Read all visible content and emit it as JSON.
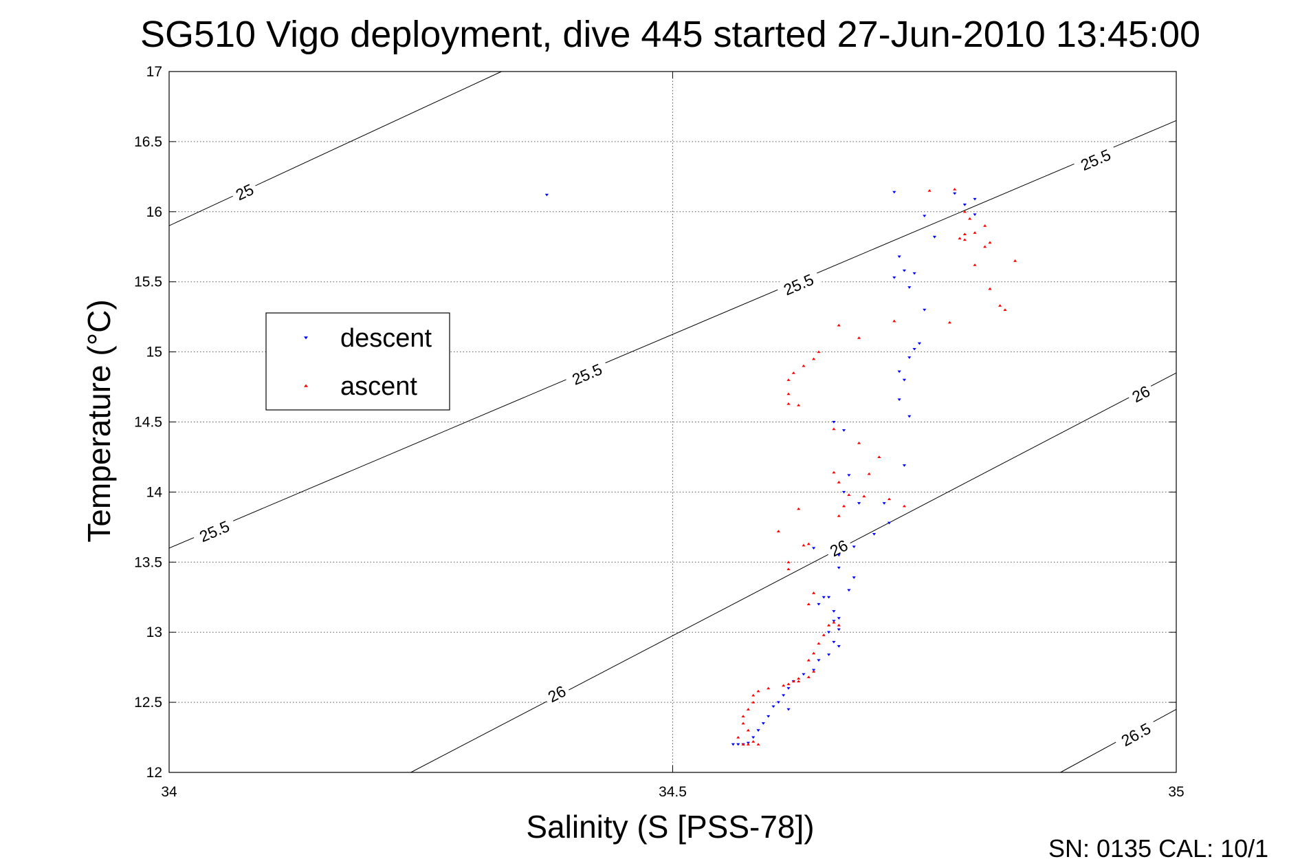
{
  "chart_data": {
    "type": "scatter",
    "title": "SG510 Vigo deployment, dive 445 started 27-Jun-2010 13:45:00",
    "xlabel": "Salinity (S [PSS-78])",
    "ylabel": "Temperature (°C)",
    "xlim": [
      34,
      35
    ],
    "ylim": [
      12,
      17
    ],
    "x_ticks": [
      "34",
      "34.5",
      "35"
    ],
    "y_ticks": [
      "12",
      "12.5",
      "13",
      "13.5",
      "14",
      "14.5",
      "15",
      "15.5",
      "16",
      "16.5",
      "17"
    ],
    "grid": true,
    "legend_position": "left",
    "footer": "SN: 0135  CAL: 10/1",
    "density_contours": [
      {
        "level": "25",
        "points": [
          [
            34.0,
            15.9
          ],
          [
            34.33,
            17.0
          ]
        ],
        "labels": [
          [
            34.075,
            16.14
          ]
        ]
      },
      {
        "level": "25.5",
        "points": [
          [
            34.0,
            13.6
          ],
          [
            35.0,
            16.65
          ]
        ],
        "labels": [
          [
            34.045,
            13.72
          ],
          [
            34.415,
            14.84
          ],
          [
            34.625,
            15.48
          ],
          [
            34.92,
            16.37
          ]
        ]
      },
      {
        "level": "26",
        "points": [
          [
            34.24,
            12.0
          ],
          [
            35.0,
            14.85
          ]
        ],
        "labels": [
          [
            34.385,
            12.56
          ],
          [
            34.665,
            13.6
          ],
          [
            34.965,
            14.7
          ]
        ]
      },
      {
        "level": "26.5",
        "points": [
          [
            34.885,
            12.0
          ],
          [
            35.0,
            12.45
          ]
        ],
        "labels": [
          [
            34.96,
            12.27
          ]
        ]
      }
    ],
    "series": [
      {
        "name": "descent",
        "color": "#0000ff",
        "marker": "triangle-down",
        "points": [
          [
            34.375,
            16.12
          ],
          [
            34.72,
            16.14
          ],
          [
            34.78,
            16.13
          ],
          [
            34.79,
            16.05
          ],
          [
            34.8,
            16.09
          ],
          [
            34.8,
            15.98
          ],
          [
            34.76,
            15.82
          ],
          [
            34.75,
            15.97
          ],
          [
            34.725,
            15.68
          ],
          [
            34.73,
            15.58
          ],
          [
            34.74,
            15.56
          ],
          [
            34.72,
            15.53
          ],
          [
            34.735,
            15.46
          ],
          [
            34.75,
            15.3
          ],
          [
            34.745,
            15.06
          ],
          [
            34.74,
            15.02
          ],
          [
            34.735,
            14.96
          ],
          [
            34.725,
            14.86
          ],
          [
            34.73,
            14.8
          ],
          [
            34.725,
            14.66
          ],
          [
            34.735,
            14.54
          ],
          [
            34.73,
            14.19
          ],
          [
            34.66,
            14.5
          ],
          [
            34.67,
            14.44
          ],
          [
            34.675,
            14.12
          ],
          [
            34.67,
            14.0
          ],
          [
            34.685,
            13.92
          ],
          [
            34.71,
            13.92
          ],
          [
            34.715,
            13.78
          ],
          [
            34.7,
            13.7
          ],
          [
            34.64,
            13.6
          ],
          [
            34.68,
            13.61
          ],
          [
            34.665,
            13.55
          ],
          [
            34.665,
            13.46
          ],
          [
            34.68,
            13.39
          ],
          [
            34.675,
            13.3
          ],
          [
            34.655,
            13.25
          ],
          [
            34.65,
            13.25
          ],
          [
            34.645,
            13.2
          ],
          [
            34.66,
            13.15
          ],
          [
            34.665,
            13.1
          ],
          [
            34.66,
            13.08
          ],
          [
            34.665,
            13.02
          ],
          [
            34.655,
            13.0
          ],
          [
            34.66,
            12.93
          ],
          [
            34.665,
            12.9
          ],
          [
            34.655,
            12.84
          ],
          [
            34.645,
            12.8
          ],
          [
            34.64,
            12.73
          ],
          [
            34.63,
            12.7
          ],
          [
            34.62,
            12.65
          ],
          [
            34.615,
            12.6
          ],
          [
            34.61,
            12.55
          ],
          [
            34.605,
            12.5
          ],
          [
            34.615,
            12.45
          ],
          [
            34.6,
            12.47
          ],
          [
            34.595,
            12.4
          ],
          [
            34.59,
            12.35
          ],
          [
            34.585,
            12.3
          ],
          [
            34.58,
            12.25
          ],
          [
            34.575,
            12.21
          ],
          [
            34.57,
            12.2
          ],
          [
            34.565,
            12.2
          ],
          [
            34.56,
            12.2
          ]
        ]
      },
      {
        "name": "ascent",
        "color": "#ff0000",
        "marker": "triangle-up",
        "points": [
          [
            34.755,
            16.15
          ],
          [
            34.78,
            16.16
          ],
          [
            34.79,
            16.0
          ],
          [
            34.795,
            15.95
          ],
          [
            34.8,
            15.85
          ],
          [
            34.81,
            15.9
          ],
          [
            34.79,
            15.84
          ],
          [
            34.785,
            15.81
          ],
          [
            34.79,
            15.8
          ],
          [
            34.81,
            15.75
          ],
          [
            34.8,
            15.62
          ],
          [
            34.815,
            15.78
          ],
          [
            34.84,
            15.65
          ],
          [
            34.815,
            15.45
          ],
          [
            34.825,
            15.33
          ],
          [
            34.83,
            15.3
          ],
          [
            34.775,
            15.21
          ],
          [
            34.72,
            15.22
          ],
          [
            34.665,
            15.19
          ],
          [
            34.685,
            15.1
          ],
          [
            34.645,
            15.0
          ],
          [
            34.64,
            14.95
          ],
          [
            34.63,
            14.9
          ],
          [
            34.62,
            14.85
          ],
          [
            34.615,
            14.8
          ],
          [
            34.615,
            14.7
          ],
          [
            34.615,
            14.63
          ],
          [
            34.625,
            14.62
          ],
          [
            34.66,
            14.45
          ],
          [
            34.685,
            14.35
          ],
          [
            34.705,
            14.25
          ],
          [
            34.66,
            14.14
          ],
          [
            34.665,
            14.07
          ],
          [
            34.695,
            14.13
          ],
          [
            34.675,
            13.98
          ],
          [
            34.67,
            13.9
          ],
          [
            34.665,
            13.83
          ],
          [
            34.715,
            13.95
          ],
          [
            34.69,
            13.97
          ],
          [
            34.73,
            13.9
          ],
          [
            34.625,
            13.88
          ],
          [
            34.605,
            13.72
          ],
          [
            34.635,
            13.63
          ],
          [
            34.63,
            13.62
          ],
          [
            34.615,
            13.45
          ],
          [
            34.615,
            13.5
          ],
          [
            34.64,
            13.28
          ],
          [
            34.635,
            13.2
          ],
          [
            34.66,
            13.07
          ],
          [
            34.665,
            13.05
          ],
          [
            34.655,
            13.05
          ],
          [
            34.65,
            12.98
          ],
          [
            34.645,
            12.92
          ],
          [
            34.64,
            12.85
          ],
          [
            34.635,
            12.8
          ],
          [
            34.64,
            12.72
          ],
          [
            34.635,
            12.68
          ],
          [
            34.625,
            12.67
          ],
          [
            34.625,
            12.65
          ],
          [
            34.62,
            12.65
          ],
          [
            34.615,
            12.63
          ],
          [
            34.61,
            12.62
          ],
          [
            34.595,
            12.6
          ],
          [
            34.585,
            12.58
          ],
          [
            34.58,
            12.55
          ],
          [
            34.58,
            12.5
          ],
          [
            34.575,
            12.45
          ],
          [
            34.57,
            12.4
          ],
          [
            34.57,
            12.35
          ],
          [
            34.575,
            12.3
          ],
          [
            34.565,
            12.25
          ],
          [
            34.58,
            12.22
          ],
          [
            34.585,
            12.2
          ],
          [
            34.575,
            12.2
          ],
          [
            34.57,
            12.2
          ]
        ]
      }
    ]
  }
}
